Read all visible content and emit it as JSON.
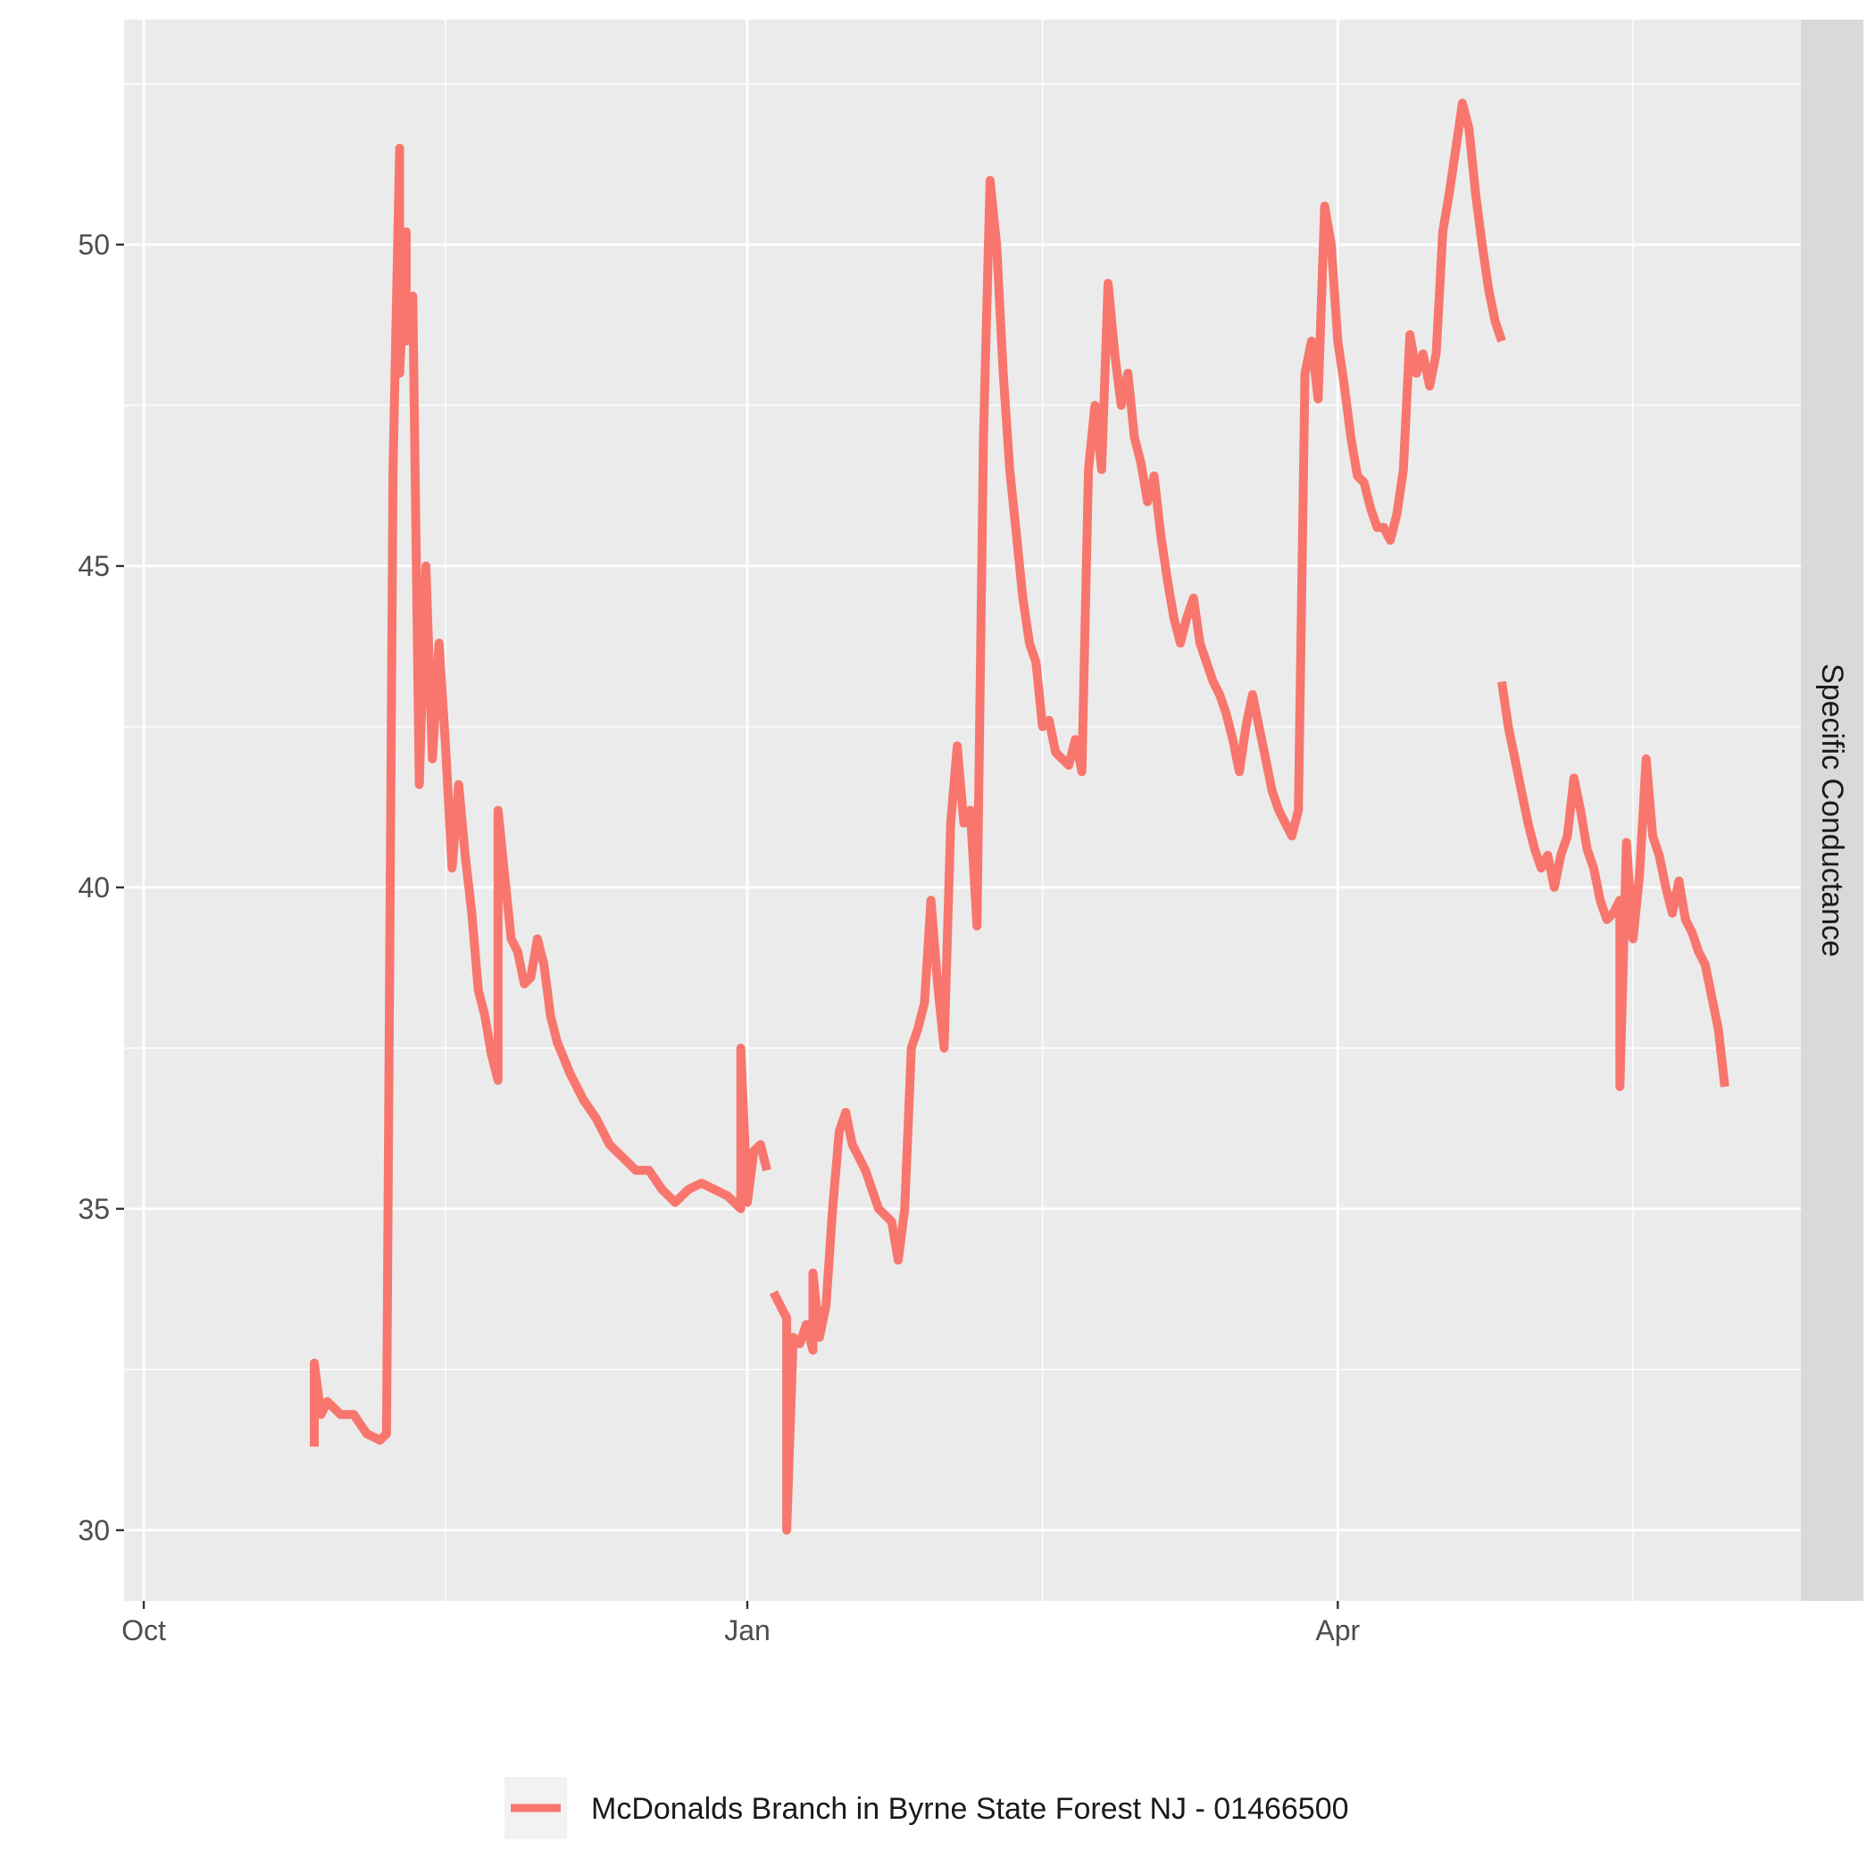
{
  "chart_data": {
    "type": "line",
    "title": "",
    "xlabel": "",
    "ylabel": "",
    "facet_label": "Specific Conductance",
    "x_ticks": [
      {
        "label": "Oct",
        "date": "2017-10-01"
      },
      {
        "label": "Jan",
        "date": "2018-01-01"
      },
      {
        "label": "Apr",
        "date": "2018-04-01"
      }
    ],
    "x_minor_gridlines": [
      "2017-11-16",
      "2018-02-15",
      "2018-05-16"
    ],
    "xlim": [
      "2017-09-27",
      "2018-06-01"
    ],
    "y_ticks": [
      30,
      35,
      40,
      45,
      50
    ],
    "ylim": [
      28.9,
      53.5
    ],
    "grid": true,
    "legend_position": "bottom",
    "colors": {
      "panel_background": "#ebebeb",
      "strip_background": "#d9d9d9",
      "grid": "#ffffff",
      "series": "#f8766d"
    },
    "series": [
      {
        "name": "McDonalds Branch in Byrne State Forest NJ - 01466500",
        "segments": [
          [
            [
              "2017-10-27",
              31.3
            ],
            [
              "2017-10-27",
              32.6
            ],
            [
              "2017-10-28",
              31.8
            ],
            [
              "2017-10-29",
              32.0
            ],
            [
              "2017-10-31",
              31.8
            ],
            [
              "2017-11-02",
              31.8
            ],
            [
              "2017-11-04",
              31.5
            ],
            [
              "2017-11-06",
              31.4
            ],
            [
              "2017-11-07",
              31.5
            ],
            [
              "2017-11-08",
              46.5
            ],
            [
              "2017-11-09",
              51.5
            ],
            [
              "2017-11-09",
              48.0
            ],
            [
              "2017-11-10",
              50.2
            ],
            [
              "2017-11-10",
              48.5
            ],
            [
              "2017-11-11",
              49.2
            ],
            [
              "2017-11-12",
              41.6
            ],
            [
              "2017-11-13",
              45.0
            ],
            [
              "2017-11-14",
              42.0
            ],
            [
              "2017-11-15",
              43.8
            ],
            [
              "2017-11-16",
              42.2
            ],
            [
              "2017-11-17",
              40.3
            ],
            [
              "2017-11-18",
              41.6
            ],
            [
              "2017-11-19",
              40.5
            ],
            [
              "2017-11-20",
              39.6
            ],
            [
              "2017-11-21",
              38.4
            ],
            [
              "2017-11-22",
              38.0
            ],
            [
              "2017-11-23",
              37.4
            ],
            [
              "2017-11-24",
              37.0
            ],
            [
              "2017-11-24",
              41.2
            ],
            [
              "2017-11-25",
              40.2
            ],
            [
              "2017-11-26",
              39.2
            ],
            [
              "2017-11-27",
              39.0
            ],
            [
              "2017-11-28",
              38.5
            ],
            [
              "2017-11-29",
              38.6
            ],
            [
              "2017-11-30",
              39.2
            ],
            [
              "2017-12-01",
              38.8
            ],
            [
              "2017-12-02",
              38.0
            ],
            [
              "2017-12-03",
              37.6
            ],
            [
              "2017-12-05",
              37.1
            ],
            [
              "2017-12-07",
              36.7
            ],
            [
              "2017-12-09",
              36.4
            ],
            [
              "2017-12-11",
              36.0
            ],
            [
              "2017-12-13",
              35.8
            ],
            [
              "2017-12-15",
              35.6
            ],
            [
              "2017-12-17",
              35.6
            ],
            [
              "2017-12-19",
              35.3
            ],
            [
              "2017-12-21",
              35.1
            ],
            [
              "2017-12-23",
              35.3
            ],
            [
              "2017-12-25",
              35.4
            ],
            [
              "2017-12-27",
              35.3
            ],
            [
              "2017-12-29",
              35.2
            ],
            [
              "2017-12-31",
              35.0
            ],
            [
              "2017-12-31",
              37.5
            ],
            [
              "2018-01-01",
              35.1
            ],
            [
              "2018-01-02",
              35.9
            ],
            [
              "2018-01-03",
              36.0
            ],
            [
              "2018-01-04",
              35.6
            ]
          ],
          [
            [
              "2018-01-05",
              33.7
            ],
            [
              "2018-01-06",
              33.5
            ],
            [
              "2018-01-07",
              33.3
            ],
            [
              "2018-01-07",
              30.0
            ],
            [
              "2018-01-08",
              33.0
            ],
            [
              "2018-01-09",
              32.9
            ],
            [
              "2018-01-10",
              33.2
            ],
            [
              "2018-01-11",
              32.8
            ],
            [
              "2018-01-11",
              34.0
            ],
            [
              "2018-01-12",
              33.0
            ],
            [
              "2018-01-13",
              33.5
            ],
            [
              "2018-01-14",
              35.0
            ],
            [
              "2018-01-15",
              36.2
            ],
            [
              "2018-01-16",
              36.5
            ],
            [
              "2018-01-17",
              36.0
            ],
            [
              "2018-01-19",
              35.6
            ],
            [
              "2018-01-21",
              35.0
            ],
            [
              "2018-01-23",
              34.8
            ],
            [
              "2018-01-24",
              34.2
            ],
            [
              "2018-01-25",
              35.0
            ],
            [
              "2018-01-26",
              37.5
            ],
            [
              "2018-01-27",
              37.8
            ],
            [
              "2018-01-28",
              38.2
            ],
            [
              "2018-01-29",
              39.8
            ],
            [
              "2018-01-30",
              38.5
            ],
            [
              "2018-01-31",
              37.5
            ],
            [
              "2018-02-01",
              41.0
            ],
            [
              "2018-02-02",
              42.2
            ],
            [
              "2018-02-03",
              41.0
            ],
            [
              "2018-02-04",
              41.2
            ],
            [
              "2018-02-05",
              39.4
            ],
            [
              "2018-02-06",
              47.0
            ],
            [
              "2018-02-07",
              51.0
            ],
            [
              "2018-02-08",
              50.0
            ],
            [
              "2018-02-09",
              48.0
            ],
            [
              "2018-02-10",
              46.5
            ],
            [
              "2018-02-11",
              45.5
            ],
            [
              "2018-02-12",
              44.5
            ],
            [
              "2018-02-13",
              43.8
            ],
            [
              "2018-02-14",
              43.5
            ],
            [
              "2018-02-15",
              42.5
            ],
            [
              "2018-02-16",
              42.6
            ],
            [
              "2018-02-17",
              42.1
            ],
            [
              "2018-02-18",
              42.0
            ],
            [
              "2018-02-19",
              41.9
            ],
            [
              "2018-02-20",
              42.3
            ],
            [
              "2018-02-21",
              41.8
            ],
            [
              "2018-02-22",
              46.5
            ],
            [
              "2018-02-23",
              47.5
            ],
            [
              "2018-02-24",
              46.5
            ],
            [
              "2018-02-25",
              49.4
            ],
            [
              "2018-02-26",
              48.3
            ],
            [
              "2018-02-27",
              47.5
            ],
            [
              "2018-02-28",
              48.0
            ],
            [
              "2018-03-01",
              47.0
            ],
            [
              "2018-03-02",
              46.6
            ],
            [
              "2018-03-03",
              46.0
            ],
            [
              "2018-03-04",
              46.4
            ],
            [
              "2018-03-05",
              45.5
            ],
            [
              "2018-03-06",
              44.8
            ],
            [
              "2018-03-07",
              44.2
            ],
            [
              "2018-03-08",
              43.8
            ],
            [
              "2018-03-09",
              44.2
            ],
            [
              "2018-03-10",
              44.5
            ],
            [
              "2018-03-11",
              43.8
            ],
            [
              "2018-03-12",
              43.5
            ],
            [
              "2018-03-13",
              43.2
            ],
            [
              "2018-03-14",
              43.0
            ],
            [
              "2018-03-15",
              42.7
            ],
            [
              "2018-03-16",
              42.3
            ],
            [
              "2018-03-17",
              41.8
            ],
            [
              "2018-03-18",
              42.5
            ],
            [
              "2018-03-19",
              43.0
            ],
            [
              "2018-03-20",
              42.5
            ],
            [
              "2018-03-21",
              42.0
            ],
            [
              "2018-03-22",
              41.5
            ],
            [
              "2018-03-23",
              41.2
            ],
            [
              "2018-03-24",
              41.0
            ],
            [
              "2018-03-25",
              40.8
            ],
            [
              "2018-03-26",
              41.2
            ],
            [
              "2018-03-27",
              48.0
            ],
            [
              "2018-03-28",
              48.5
            ],
            [
              "2018-03-29",
              47.6
            ],
            [
              "2018-03-30",
              50.6
            ],
            [
              "2018-03-31",
              50.0
            ],
            [
              "2018-04-01",
              48.5
            ],
            [
              "2018-04-02",
              47.8
            ],
            [
              "2018-04-03",
              47.0
            ],
            [
              "2018-04-04",
              46.4
            ],
            [
              "2018-04-05",
              46.3
            ],
            [
              "2018-04-06",
              45.9
            ],
            [
              "2018-04-07",
              45.6
            ],
            [
              "2018-04-08",
              45.6
            ],
            [
              "2018-04-09",
              45.4
            ],
            [
              "2018-04-10",
              45.8
            ],
            [
              "2018-04-11",
              46.5
            ],
            [
              "2018-04-12",
              48.6
            ],
            [
              "2018-04-13",
              48.0
            ],
            [
              "2018-04-14",
              48.3
            ],
            [
              "2018-04-15",
              47.8
            ],
            [
              "2018-04-16",
              48.3
            ],
            [
              "2018-04-17",
              50.2
            ],
            [
              "2018-04-18",
              50.8
            ],
            [
              "2018-04-19",
              51.5
            ],
            [
              "2018-04-20",
              52.2
            ],
            [
              "2018-04-21",
              51.8
            ],
            [
              "2018-04-22",
              50.8
            ],
            [
              "2018-04-23",
              50.0
            ],
            [
              "2018-04-24",
              49.3
            ],
            [
              "2018-04-25",
              48.8
            ],
            [
              "2018-04-26",
              48.5
            ]
          ],
          [
            [
              "2018-04-26",
              43.2
            ],
            [
              "2018-04-27",
              42.5
            ],
            [
              "2018-04-28",
              42.0
            ],
            [
              "2018-04-29",
              41.5
            ],
            [
              "2018-04-30",
              41.0
            ],
            [
              "2018-05-01",
              40.6
            ],
            [
              "2018-05-02",
              40.3
            ],
            [
              "2018-05-03",
              40.5
            ],
            [
              "2018-05-04",
              40.0
            ],
            [
              "2018-05-05",
              40.5
            ],
            [
              "2018-05-06",
              40.8
            ],
            [
              "2018-05-07",
              41.7
            ],
            [
              "2018-05-08",
              41.2
            ],
            [
              "2018-05-09",
              40.6
            ],
            [
              "2018-05-10",
              40.3
            ],
            [
              "2018-05-11",
              39.8
            ],
            [
              "2018-05-12",
              39.5
            ],
            [
              "2018-05-13",
              39.6
            ],
            [
              "2018-05-14",
              39.8
            ],
            [
              "2018-05-14",
              36.9
            ],
            [
              "2018-05-15",
              40.7
            ],
            [
              "2018-05-16",
              39.2
            ],
            [
              "2018-05-17",
              40.2
            ],
            [
              "2018-05-18",
              42.0
            ],
            [
              "2018-05-19",
              40.8
            ],
            [
              "2018-05-20",
              40.5
            ],
            [
              "2018-05-21",
              40.0
            ],
            [
              "2018-05-22",
              39.6
            ],
            [
              "2018-05-23",
              40.1
            ],
            [
              "2018-05-24",
              39.5
            ],
            [
              "2018-05-25",
              39.3
            ],
            [
              "2018-05-26",
              39.0
            ],
            [
              "2018-05-27",
              38.8
            ],
            [
              "2018-05-28",
              38.3
            ],
            [
              "2018-05-29",
              37.8
            ],
            [
              "2018-05-30",
              36.9
            ]
          ]
        ]
      }
    ]
  }
}
